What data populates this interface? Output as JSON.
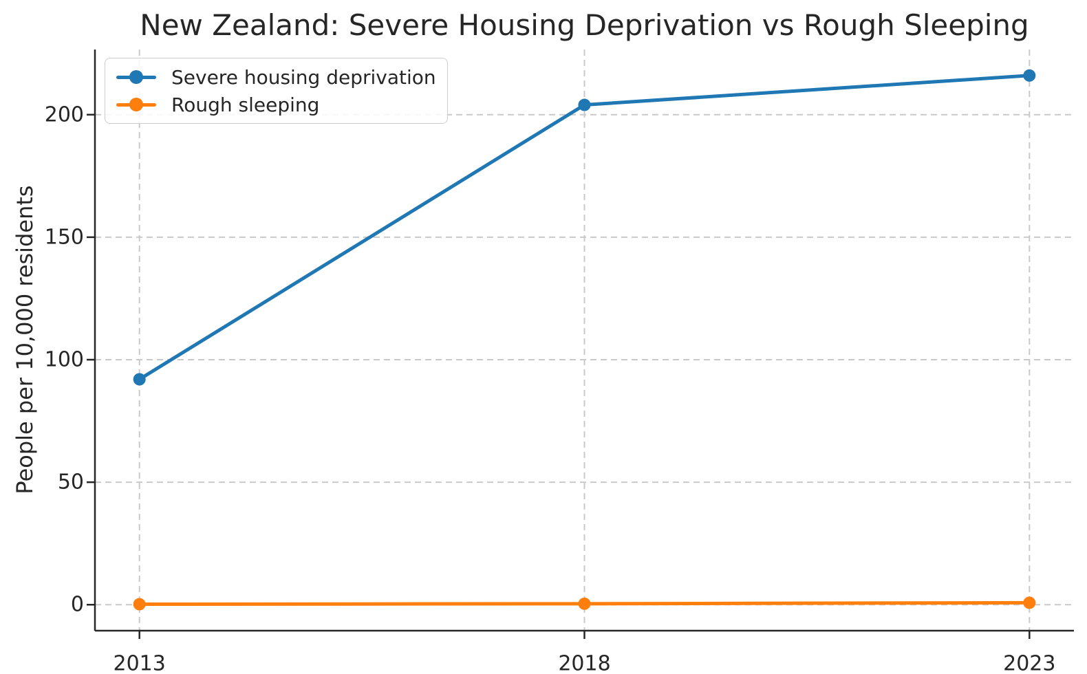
{
  "chart_data": {
    "type": "line",
    "title": "New Zealand: Severe Housing Deprivation vs Rough Sleeping",
    "xlabel": "",
    "ylabel": "People per 10,000 residents",
    "x": [
      2013,
      2018,
      2023
    ],
    "xtick_labels": [
      "2013",
      "2018",
      "2023"
    ],
    "yticks": [
      0,
      50,
      100,
      150,
      200
    ],
    "ytick_labels": [
      "0",
      "50",
      "100",
      "150",
      "200"
    ],
    "xlim": [
      2012.5,
      2023.5
    ],
    "ylim": [
      -10.6,
      226.6
    ],
    "grid": true,
    "grid_style": "dashed",
    "legend_position": "upper left",
    "series": [
      {
        "name": "Severe housing deprivation",
        "color": "#1f77b4",
        "values": [
          92,
          204,
          216
        ]
      },
      {
        "name": "Rough sleeping",
        "color": "#ff7f0e",
        "values": [
          0.2,
          0.4,
          0.8
        ]
      }
    ]
  },
  "colors": {
    "text": "#262626",
    "spine": "#262626",
    "grid": "#c9c9c9",
    "background": "#ffffff",
    "legend_border": "#cccccc",
    "series_blue": "#1f77b4",
    "series_orange": "#ff7f0e"
  }
}
